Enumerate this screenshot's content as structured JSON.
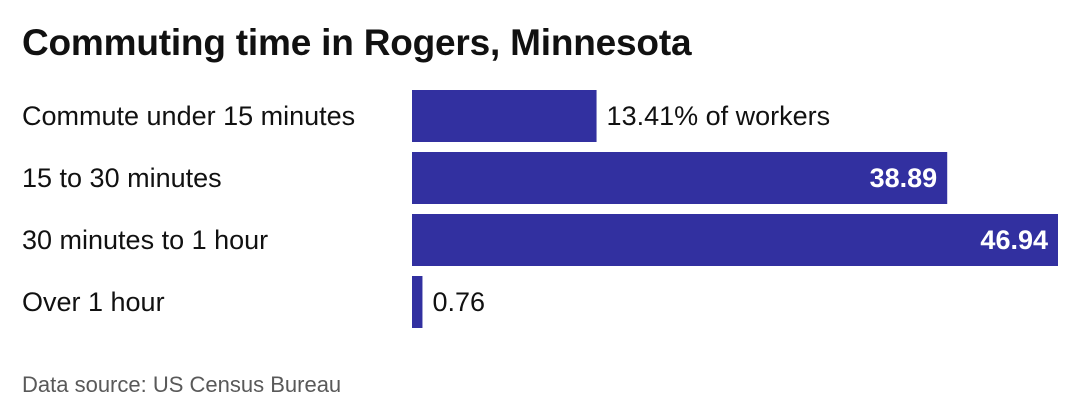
{
  "title": "Commuting time in Rogers, Minnesota",
  "source": "Data source: US Census Bureau",
  "colors": {
    "bar": "#3230a0",
    "text": "#111111",
    "inside_label": "#ffffff",
    "source": "#595959"
  },
  "chart_data": {
    "type": "bar",
    "orientation": "horizontal",
    "title": "Commuting time in Rogers, Minnesota",
    "categories": [
      "Commute under 15 minutes",
      "15 to 30 minutes",
      "30 minutes to 1 hour",
      "Over 1 hour"
    ],
    "values": [
      13.41,
      38.89,
      46.94,
      0.76
    ],
    "value_labels": [
      "13.41% of workers",
      "38.89",
      "46.94",
      "0.76"
    ],
    "unit": "% of workers",
    "xlim": [
      0,
      46.94
    ],
    "grid": false,
    "legend": "none"
  }
}
